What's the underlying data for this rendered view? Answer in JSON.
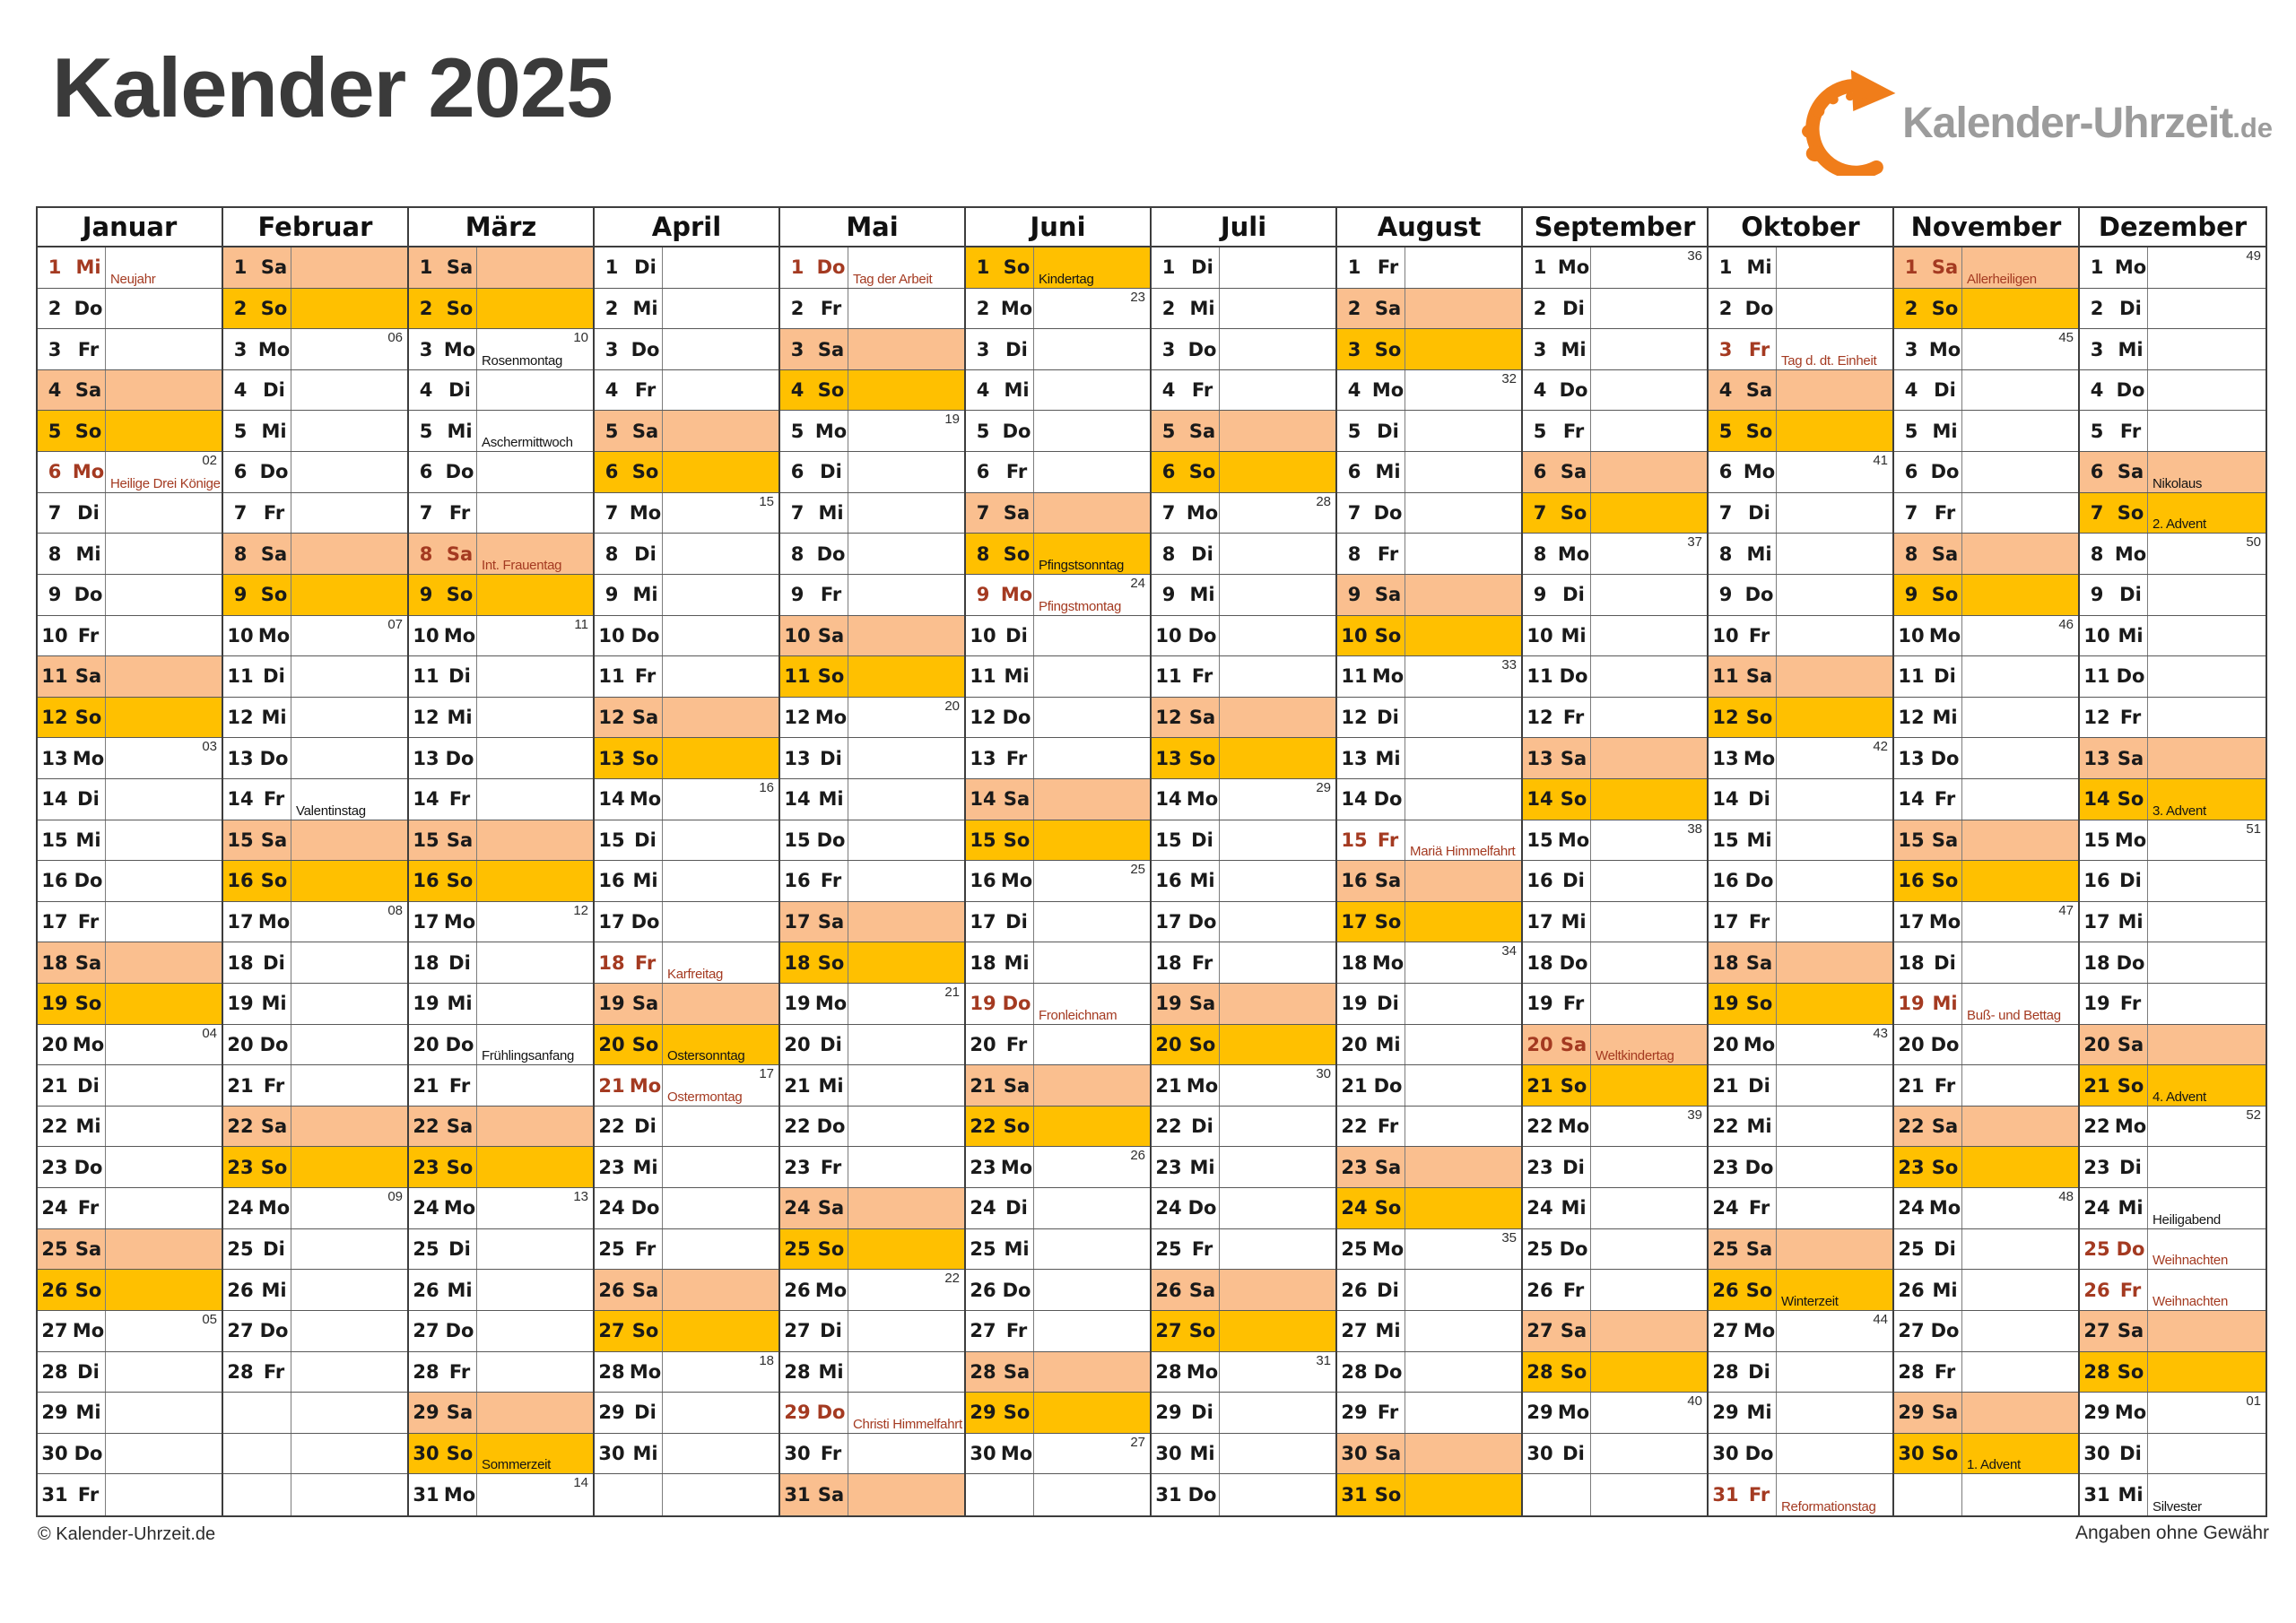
{
  "title": "Kalender 2025",
  "logo": {
    "text": "Kalender-Uhrzeit",
    "tld": ".de"
  },
  "footer": {
    "left": "© Kalender-Uhrzeit.de",
    "right": "Angaben ohne Gewähr"
  },
  "colors": {
    "saturday_bg": "#FABF8F",
    "sunday_bg": "#FFC000",
    "holiday_text": "#A43A21",
    "title_text": "#3A3A3A",
    "logo_gray": "#9C9C9C",
    "logo_orange": "#F07D1A",
    "line_dark": "#3D3D3D",
    "line_row": "#585858",
    "line_sub": "#7D7D7D",
    "text": "#1A1A1A"
  },
  "weekday_order": [
    "Mo",
    "Di",
    "Mi",
    "Do",
    "Fr",
    "Sa",
    "So"
  ],
  "months": [
    {
      "name": "Januar",
      "days": 31,
      "first": "Mi",
      "weeks": {
        "6": "02",
        "13": "03",
        "20": "04",
        "27": "05"
      },
      "events": [
        {
          "d": 1,
          "label": "Neujahr",
          "holiday": true
        },
        {
          "d": 6,
          "label": "Heilige Drei Könige",
          "holiday": true
        }
      ]
    },
    {
      "name": "Februar",
      "days": 28,
      "first": "Sa",
      "weeks": {
        "3": "06",
        "10": "07",
        "17": "08",
        "24": "09"
      },
      "events": [
        {
          "d": 14,
          "label": "Valentinstag",
          "holiday": false
        }
      ]
    },
    {
      "name": "März",
      "days": 31,
      "first": "Sa",
      "weeks": {
        "3": "10",
        "10": "11",
        "17": "12",
        "24": "13",
        "31": "14"
      },
      "events": [
        {
          "d": 3,
          "label": "Rosenmontag",
          "holiday": false
        },
        {
          "d": 5,
          "label": "Aschermittwoch",
          "holiday": false
        },
        {
          "d": 8,
          "label": "Int. Frauentag",
          "holiday": true
        },
        {
          "d": 20,
          "label": "Frühlingsanfang",
          "holiday": false
        },
        {
          "d": 30,
          "label": "Sommerzeit",
          "holiday": false
        }
      ]
    },
    {
      "name": "April",
      "days": 30,
      "first": "Di",
      "weeks": {
        "7": "15",
        "14": "16",
        "21": "17",
        "28": "18"
      },
      "events": [
        {
          "d": 18,
          "label": "Karfreitag",
          "holiday": true
        },
        {
          "d": 20,
          "label": "Ostersonntag",
          "holiday": false
        },
        {
          "d": 21,
          "label": "Ostermontag",
          "holiday": true
        }
      ]
    },
    {
      "name": "Mai",
      "days": 31,
      "first": "Do",
      "weeks": {
        "5": "19",
        "12": "20",
        "19": "21",
        "26": "22"
      },
      "events": [
        {
          "d": 1,
          "label": "Tag der Arbeit",
          "holiday": true
        },
        {
          "d": 29,
          "label": "Christi Himmelfahrt",
          "holiday": true
        }
      ]
    },
    {
      "name": "Juni",
      "days": 30,
      "first": "So",
      "weeks": {
        "2": "23",
        "9": "24",
        "16": "25",
        "23": "26",
        "30": "27"
      },
      "events": [
        {
          "d": 1,
          "label": "Kindertag",
          "holiday": false
        },
        {
          "d": 8,
          "label": "Pfingstsonntag",
          "holiday": false
        },
        {
          "d": 9,
          "label": "Pfingstmontag",
          "holiday": true
        },
        {
          "d": 19,
          "label": "Fronleichnam",
          "holiday": true
        }
      ]
    },
    {
      "name": "Juli",
      "days": 31,
      "first": "Di",
      "weeks": {
        "7": "28",
        "14": "29",
        "21": "30",
        "28": "31"
      },
      "events": []
    },
    {
      "name": "August",
      "days": 31,
      "first": "Fr",
      "weeks": {
        "4": "32",
        "11": "33",
        "18": "34",
        "25": "35"
      },
      "events": [
        {
          "d": 15,
          "label": "Mariä Himmelfahrt",
          "holiday": true
        }
      ]
    },
    {
      "name": "September",
      "days": 30,
      "first": "Mo",
      "weeks": {
        "1": "36",
        "8": "37",
        "15": "38",
        "22": "39",
        "29": "40"
      },
      "events": [
        {
          "d": 20,
          "label": "Weltkindertag",
          "holiday": true
        }
      ]
    },
    {
      "name": "Oktober",
      "days": 31,
      "first": "Mi",
      "weeks": {
        "6": "41",
        "13": "42",
        "20": "43",
        "27": "44"
      },
      "events": [
        {
          "d": 3,
          "label": "Tag d. dt. Einheit",
          "holiday": true
        },
        {
          "d": 26,
          "label": "Winterzeit",
          "holiday": false
        },
        {
          "d": 31,
          "label": "Reformationstag",
          "holiday": true
        }
      ]
    },
    {
      "name": "November",
      "days": 30,
      "first": "Sa",
      "weeks": {
        "3": "45",
        "10": "46",
        "17": "47",
        "24": "48"
      },
      "events": [
        {
          "d": 1,
          "label": "Allerheiligen",
          "holiday": true
        },
        {
          "d": 19,
          "label": "Buß- und Bettag",
          "holiday": true
        },
        {
          "d": 30,
          "label": "1. Advent",
          "holiday": false
        }
      ]
    },
    {
      "name": "Dezember",
      "days": 31,
      "first": "Mo",
      "weeks": {
        "1": "49",
        "8": "50",
        "15": "51",
        "22": "52",
        "29": "01"
      },
      "events": [
        {
          "d": 6,
          "label": "Nikolaus",
          "holiday": false
        },
        {
          "d": 7,
          "label": "2. Advent",
          "holiday": false
        },
        {
          "d": 14,
          "label": "3. Advent",
          "holiday": false
        },
        {
          "d": 21,
          "label": "4. Advent",
          "holiday": false
        },
        {
          "d": 24,
          "label": "Heiligabend",
          "holiday": false
        },
        {
          "d": 25,
          "label": "Weihnachten",
          "holiday": true
        },
        {
          "d": 26,
          "label": "Weihnachten",
          "holiday": true
        },
        {
          "d": 31,
          "label": "Silvester",
          "holiday": false
        }
      ]
    }
  ]
}
